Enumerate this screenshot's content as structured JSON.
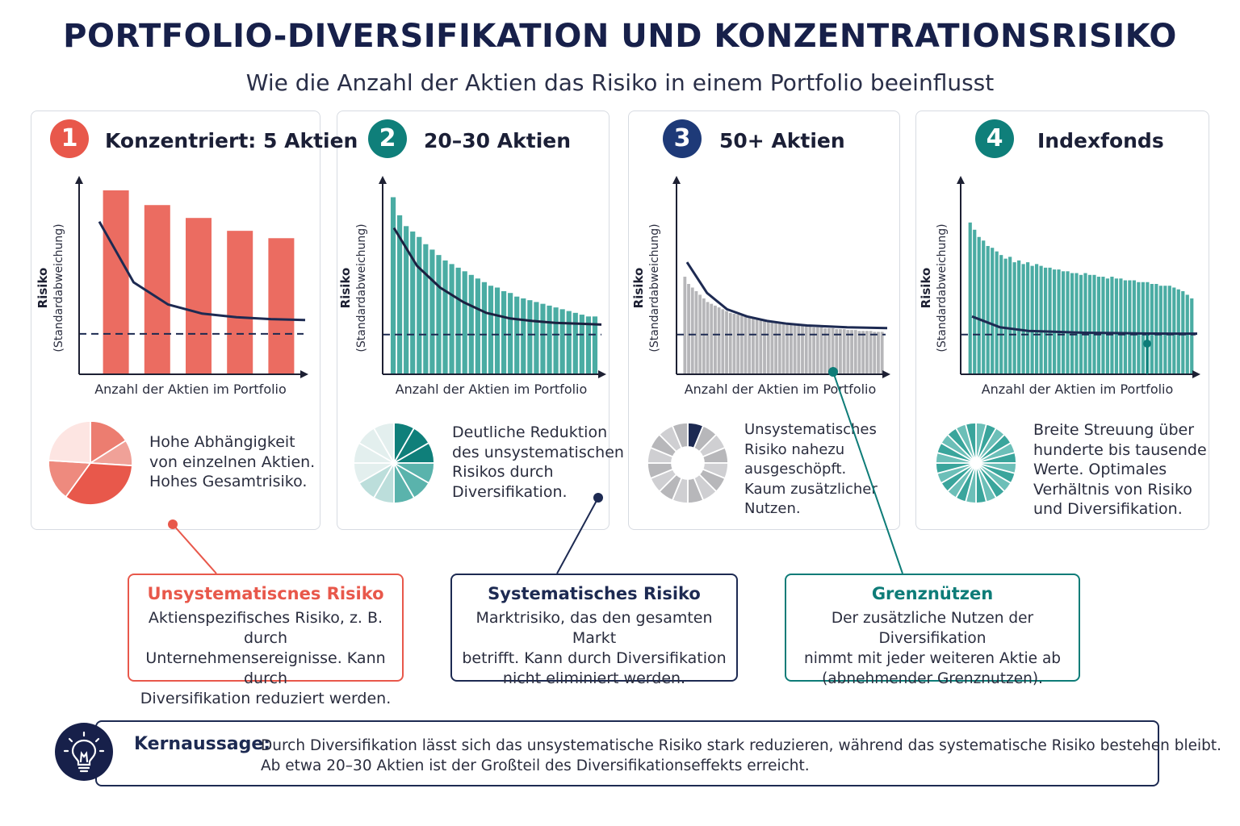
{
  "header": {
    "title": "PORTFOLIO-DIVERSIFIKATION UND KONZENTRATIONSRISIKO",
    "subtitle": "Wie die Anzahl der Aktien das Risiko in einem Portfolio beeinflusst"
  },
  "colors": {
    "red": "#e8584b",
    "teal": "#2a9d93",
    "navy": "#1d2a52",
    "gray": "#a9a9ad",
    "dark_teal": "#0e7c78"
  },
  "panels": [
    {
      "number": "1",
      "title": "Konzentriert: 5 Aktien",
      "description": [
        "Hohe Abhängigkeit",
        "von einzelnen Aktien.",
        "Hohes Gesamtrisiko."
      ],
      "icon": "pie-chart-icon"
    },
    {
      "number": "2",
      "title": "20–30 Aktien",
      "description": [
        "Deutliche Reduktion",
        "des unsystematischen",
        "Risikos durch",
        "Diversifikation."
      ],
      "icon": "pie-chart-icon"
    },
    {
      "number": "3",
      "title": "50+ Aktien",
      "description": [
        "Unsystematisches",
        "Risiko nahezu",
        "ausgeschöpft.",
        "Kaum zusätzlicher",
        "Nutzen."
      ],
      "icon": "donut-chart-icon"
    },
    {
      "number": "4",
      "title": "Indexfonds",
      "description": [
        "Breite Streuung über",
        "hunderte bis tausende",
        "Werte. Optimales",
        "Verhältnis von Risiko",
        "und Diversifikation."
      ],
      "icon": "pie-chart-icon"
    }
  ],
  "chart_data": [
    {
      "type": "bar",
      "xlabel": "Anzahl der Aktien im Portfolio",
      "ylabel": "Risiko (Standardabweichung)",
      "ylim": [
        0,
        100
      ],
      "values": [
        100,
        92,
        85,
        78,
        74
      ],
      "curve": [
        83,
        50,
        38,
        33,
        31,
        30,
        29.5
      ],
      "baseline": 22
    },
    {
      "type": "bar",
      "xlabel": "Anzahl der Aktien im Portfolio",
      "ylabel": "Risiko (Standardabweichung)",
      "ylim": [
        0,
        100
      ],
      "values": [
        98,
        88,
        82,
        79,
        76,
        72,
        69,
        66,
        63,
        61,
        59,
        57,
        55,
        53,
        51,
        49,
        48,
        46,
        45,
        43,
        42,
        41,
        40,
        39,
        38,
        37,
        36,
        35,
        34,
        33,
        32,
        32
      ],
      "curve": [
        81,
        60,
        48,
        40,
        34,
        31,
        29.5,
        28.5,
        28,
        27.5
      ],
      "baseline": 22
    },
    {
      "type": "bar",
      "xlabel": "Anzahl der Aktien im Portfolio",
      "ylabel": "Risiko (Standardabweichung)",
      "ylim": [
        0,
        100
      ],
      "values": [
        54,
        50,
        48,
        46,
        44,
        42,
        40,
        39,
        38,
        37,
        36,
        35,
        34,
        33.5,
        33,
        32.5,
        32,
        31.5,
        31,
        30.5,
        30,
        29.5,
        29,
        29,
        28.5,
        28.5,
        28,
        28,
        27.5,
        27.5,
        27,
        27,
        26.5,
        26.5,
        26,
        26,
        26,
        25.5,
        25.5,
        25.5,
        25,
        25,
        25,
        24.5,
        24.5,
        24.5,
        24,
        24,
        24,
        24,
        23.5,
        23.5,
        23.5
      ],
      "curve": [
        62,
        45,
        36,
        32,
        29.5,
        28,
        27,
        26.5,
        26,
        25.8,
        25.6
      ],
      "baseline": 22
    },
    {
      "type": "bar",
      "xlabel": "Anzahl der Aktien im Portfolio",
      "ylabel": "Risiko (Standardabweichung)",
      "ylim": [
        0,
        100
      ],
      "values": [
        84,
        80,
        76,
        74,
        71,
        70,
        68,
        66,
        64,
        65,
        62,
        63,
        61,
        62,
        60,
        61,
        60,
        59,
        59,
        58,
        58,
        57,
        57,
        56,
        56,
        55,
        56,
        55,
        55,
        54,
        54,
        53,
        54,
        53,
        53,
        52,
        52,
        52,
        51,
        51,
        51,
        50,
        50,
        49,
        49,
        49,
        48,
        47,
        46,
        44,
        42
      ],
      "curve": [
        32,
        26,
        24,
        23.5,
        23,
        22.8,
        22.6,
        22.5,
        22.5
      ],
      "baseline": 22
    }
  ],
  "callouts": [
    {
      "title": "Unsystematiscnes Risiko",
      "lines": [
        "Aktienspezifisches Risiko, z. B. durch",
        "Unternehmensereignisse. Kann durch",
        "Diversifikation reduziert werden."
      ]
    },
    {
      "title": "Systematisches Risiko",
      "lines": [
        "Marktrisiko, das den gesamten Markt",
        "betrifft. Kann durch Diversifikation",
        "nicht eliminiert werden."
      ]
    },
    {
      "title": "Grenznützen",
      "lines": [
        "Der zusätzliche Nutzen der Diversifikation",
        "nimmt mit jeder weiteren Aktie ab",
        "(abnehmender Grenznutzen)."
      ]
    }
  ],
  "key": {
    "label": "Kernaussage:",
    "lines": [
      "Durch Diversifikation lässt sich das unsystematische Risiko stark reduzieren, während das systematische Risiko bestehen bleibt.",
      "Ab etwa 20–30 Aktien ist der Großteil des Diversifikationseffekts erreicht."
    ],
    "icon": "lightbulb-icon"
  }
}
